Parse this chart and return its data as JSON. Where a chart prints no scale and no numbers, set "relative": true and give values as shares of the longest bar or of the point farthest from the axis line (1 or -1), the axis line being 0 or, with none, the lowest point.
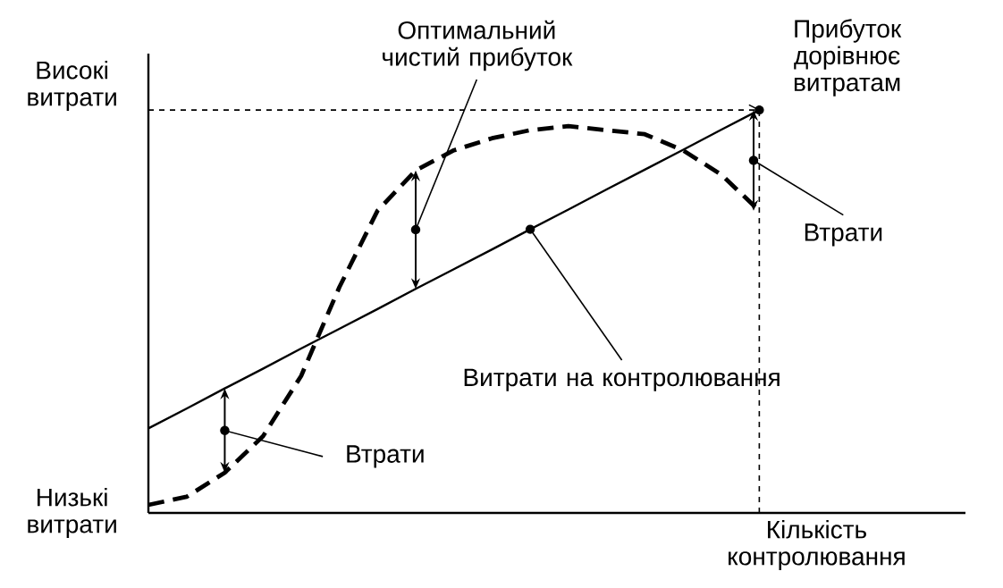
{
  "chart_data": {
    "type": "line",
    "relative": true,
    "marker": "none",
    "categories": [
      null,
      null,
      null,
      null,
      null,
      null,
      null,
      null,
      null,
      null,
      null,
      null,
      null,
      null,
      null,
      null,
      null
    ],
    "ylabel": "Високі витрати",
    "xlabel": "Кількість контролювання",
    "series": [
      {
        "color": "#000000",
        "line_style": "solid",
        "values": [
          0.21,
          0.259,
          0.309,
          0.358,
          0.408,
          0.457,
          0.506,
          0.556,
          0.605,
          0.654,
          0.704,
          0.753,
          0.803,
          0.852,
          0.901,
          0.951,
          1.0
        ]
      },
      {
        "color": "#000000",
        "line_style": "dashed",
        "values": [
          0.02,
          0.04,
          0.1,
          0.19,
          0.34,
          0.56,
          0.75,
          0.85,
          0.9,
          0.93,
          0.95,
          0.96,
          0.95,
          0.94,
          0.9,
          0.84,
          0.75
        ]
      }
    ],
    "ref_lines": [
      {
        "axis": "y",
        "value": 1,
        "color": "#000000",
        "line_style": "dashed"
      }
    ],
    "annotations": [
      "Низькі витрати",
      "Оптимальний чистий прибуток",
      "Прибуток дорівнює витратам",
      "Втрати",
      "Втрати",
      "Витрати на контролювання"
    ]
  }
}
